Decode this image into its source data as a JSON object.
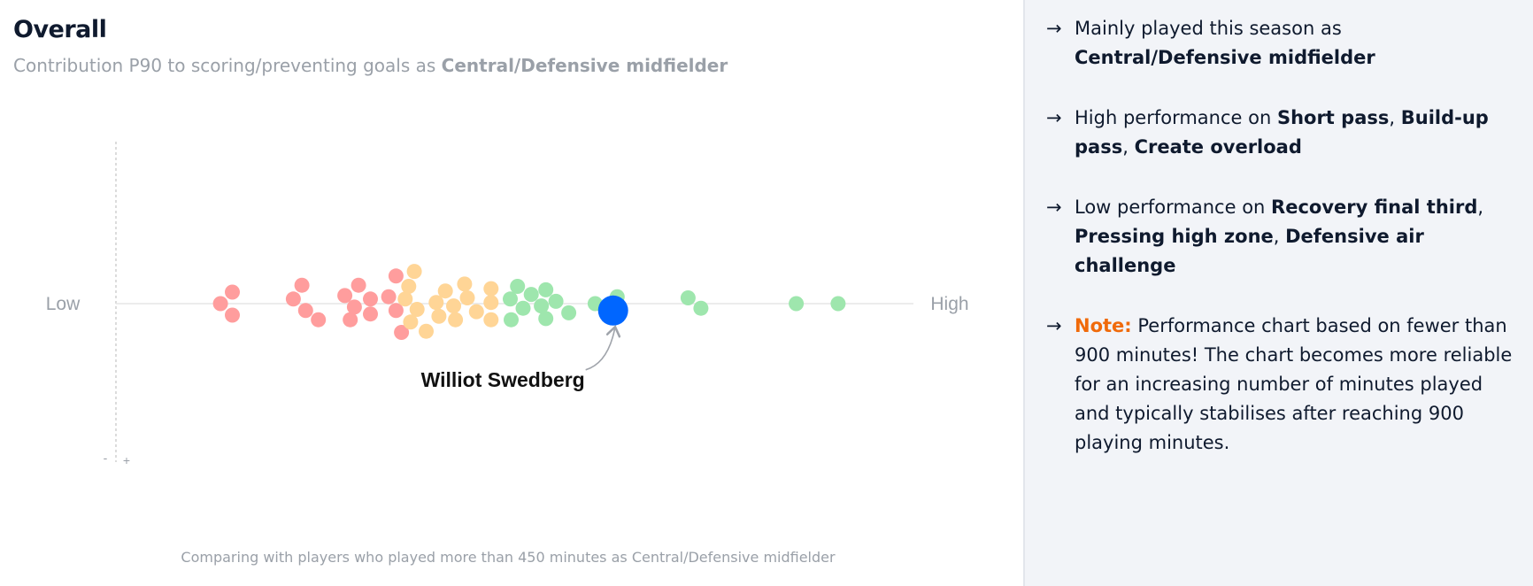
{
  "left": {
    "title": "Overall",
    "subtitle_prefix": "Contribution P90 to scoring/preventing goals as ",
    "subtitle_role": "Central/Defensive midfielder",
    "footnote": "Comparing with players who played more than 450 minutes as Central/Defensive midfielder"
  },
  "chart_data": {
    "type": "scatter",
    "subtype": "beeswarm",
    "title": "Overall",
    "xlabel_low": "Low",
    "xlabel_high": "High",
    "y_minus_label": "-",
    "y_plus_label": "+",
    "x_axis": "contribution P90 percentile (0 = Low, 1 = High)",
    "colors": {
      "low": "#ff9d9d",
      "mid": "#ffd596",
      "high": "#9ee6ad",
      "highlight": "#0066ff",
      "axis": "#e6e6e6",
      "vertical_axis": "#cccccc",
      "annotation_arrow": "#a0a4ab"
    },
    "points": [
      {
        "x": 0.1311,
        "y": 0.0,
        "group": "low"
      },
      {
        "x": 0.146,
        "y": 1.0,
        "group": "low"
      },
      {
        "x": 0.146,
        "y": -1.0,
        "group": "low"
      },
      {
        "x": 0.2224,
        "y": 0.4,
        "group": "low"
      },
      {
        "x": 0.2332,
        "y": 1.6,
        "group": "low"
      },
      {
        "x": 0.2378,
        "y": -0.6,
        "group": "low"
      },
      {
        "x": 0.2538,
        "y": -1.4,
        "group": "low"
      },
      {
        "x": 0.287,
        "y": 0.7,
        "group": "low"
      },
      {
        "x": 0.2938,
        "y": -1.4,
        "group": "low"
      },
      {
        "x": 0.299,
        "y": -0.3,
        "group": "low"
      },
      {
        "x": 0.3042,
        "y": 1.6,
        "group": "low"
      },
      {
        "x": 0.3191,
        "y": 0.4,
        "group": "low"
      },
      {
        "x": 0.3191,
        "y": -0.9,
        "group": "low"
      },
      {
        "x": 0.342,
        "y": 0.6,
        "group": "low"
      },
      {
        "x": 0.3512,
        "y": 2.4,
        "group": "low"
      },
      {
        "x": 0.3512,
        "y": -0.6,
        "group": "low"
      },
      {
        "x": 0.3581,
        "y": -2.5,
        "group": "low"
      },
      {
        "x": 0.3627,
        "y": 0.4,
        "group": "mid"
      },
      {
        "x": 0.3672,
        "y": 1.5,
        "group": "mid"
      },
      {
        "x": 0.3695,
        "y": -1.6,
        "group": "mid"
      },
      {
        "x": 0.3741,
        "y": 2.8,
        "group": "mid"
      },
      {
        "x": 0.3776,
        "y": -0.5,
        "group": "mid"
      },
      {
        "x": 0.389,
        "y": -2.4,
        "group": "mid"
      },
      {
        "x": 0.4016,
        "y": 0.1,
        "group": "mid"
      },
      {
        "x": 0.405,
        "y": -1.1,
        "group": "mid"
      },
      {
        "x": 0.4131,
        "y": 1.1,
        "group": "mid"
      },
      {
        "x": 0.4234,
        "y": -0.2,
        "group": "mid"
      },
      {
        "x": 0.4257,
        "y": -1.4,
        "group": "mid"
      },
      {
        "x": 0.4372,
        "y": 1.7,
        "group": "mid"
      },
      {
        "x": 0.4406,
        "y": 0.5,
        "group": "mid"
      },
      {
        "x": 0.4521,
        "y": -0.7,
        "group": "mid"
      },
      {
        "x": 0.4704,
        "y": 1.3,
        "group": "mid"
      },
      {
        "x": 0.4704,
        "y": 0.1,
        "group": "mid"
      },
      {
        "x": 0.4704,
        "y": -1.4,
        "group": "mid"
      },
      {
        "x": 0.4945,
        "y": 0.4,
        "group": "high"
      },
      {
        "x": 0.4956,
        "y": -1.4,
        "group": "high"
      },
      {
        "x": 0.5036,
        "y": 1.5,
        "group": "high"
      },
      {
        "x": 0.5105,
        "y": -0.4,
        "group": "high"
      },
      {
        "x": 0.5208,
        "y": 0.8,
        "group": "high"
      },
      {
        "x": 0.5334,
        "y": -0.2,
        "group": "high"
      },
      {
        "x": 0.5391,
        "y": 1.2,
        "group": "high"
      },
      {
        "x": 0.5391,
        "y": -1.3,
        "group": "high"
      },
      {
        "x": 0.5517,
        "y": 0.2,
        "group": "high"
      },
      {
        "x": 0.5678,
        "y": -0.8,
        "group": "high"
      },
      {
        "x": 0.6009,
        "y": 0.0,
        "group": "high"
      },
      {
        "x": 0.6285,
        "y": 0.6,
        "group": "high"
      },
      {
        "x": 0.7174,
        "y": 0.5,
        "group": "high"
      },
      {
        "x": 0.7335,
        "y": -0.4,
        "group": "high"
      },
      {
        "x": 0.853,
        "y": 0.0,
        "group": "high"
      },
      {
        "x": 0.9056,
        "y": 0.0,
        "group": "high"
      }
    ],
    "highlight": {
      "label": "Williot Swedberg",
      "x": 0.6234,
      "y": -0.6
    }
  },
  "insights": [
    {
      "parts": [
        {
          "text": "Mainly played this season as "
        },
        {
          "text": "Central/Defensive midfielder",
          "bold": true
        }
      ]
    },
    {
      "parts": [
        {
          "text": "High performance on "
        },
        {
          "text": "Short pass",
          "bold": true
        },
        {
          "text": ", "
        },
        {
          "text": "Build-up pass",
          "bold": true
        },
        {
          "text": ", "
        },
        {
          "text": "Create overload",
          "bold": true
        }
      ]
    },
    {
      "parts": [
        {
          "text": "Low performance on "
        },
        {
          "text": "Recovery final third",
          "bold": true
        },
        {
          "text": ", "
        },
        {
          "text": "Pressing high zone",
          "bold": true
        },
        {
          "text": ", "
        },
        {
          "text": "Defensive air challenge",
          "bold": true
        }
      ]
    },
    {
      "parts": [
        {
          "text": "Note:",
          "note": true
        },
        {
          "text": " Performance chart based on fewer than 900 minutes! The chart becomes more reliable for an increasing number of minutes played and typically stabilises after reaching 900 playing minutes."
        }
      ]
    }
  ],
  "insight_arrow": "→"
}
